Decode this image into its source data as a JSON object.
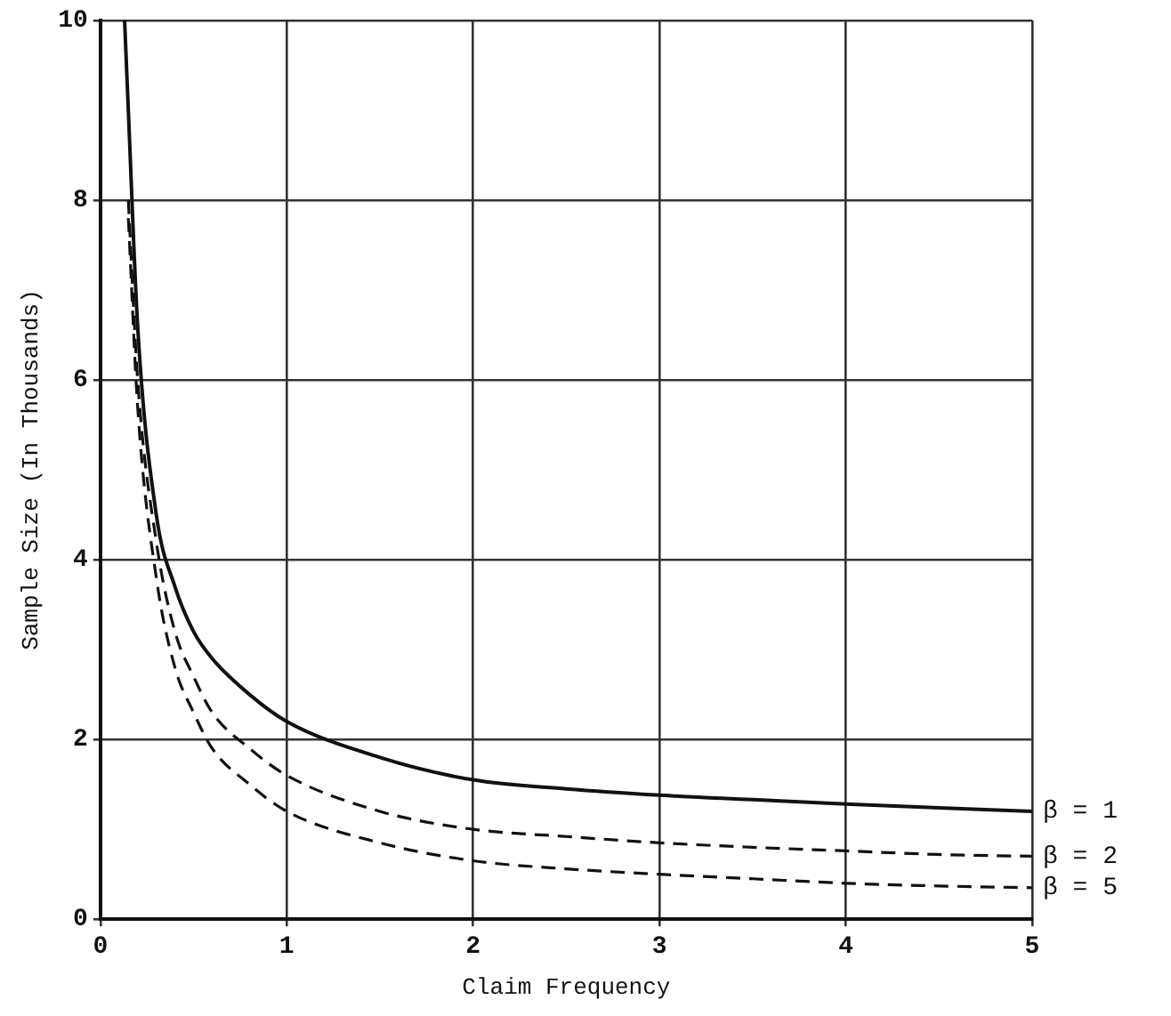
{
  "chart_data": {
    "type": "line",
    "xlabel": "Claim Frequency",
    "ylabel": "Sample Size (In Thousands)",
    "xlim": [
      0,
      5
    ],
    "xticks": [
      0,
      1,
      2,
      3,
      4,
      5
    ],
    "ylim": [
      0,
      10
    ],
    "yticks": [
      0,
      2,
      4,
      6,
      8,
      10
    ],
    "grid": true,
    "legend": false,
    "marker": "none",
    "series": [
      {
        "name": "β = 1",
        "color": "#111111",
        "line_style": "solid",
        "x": [
          0.13,
          0.15,
          0.2,
          0.3,
          0.4,
          0.5,
          0.6,
          0.8,
          1,
          1.5,
          2,
          2.5,
          3,
          3.5,
          4,
          4.5,
          5
        ],
        "values": [
          10,
          9,
          6.6,
          4.5,
          3.7,
          3.2,
          2.9,
          2.5,
          2.2,
          1.8,
          1.55,
          1.45,
          1.38,
          1.33,
          1.28,
          1.24,
          1.2
        ]
      },
      {
        "name": "β = 2",
        "color": "#111111",
        "line_style": "dashed",
        "x": [
          0.15,
          0.2,
          0.3,
          0.4,
          0.5,
          0.6,
          0.8,
          1,
          1.5,
          2,
          2.5,
          3,
          3.5,
          4,
          4.5,
          5
        ],
        "values": [
          8,
          6,
          4.2,
          3.2,
          2.7,
          2.3,
          1.9,
          1.6,
          1.2,
          1,
          0.92,
          0.85,
          0.8,
          0.76,
          0.72,
          0.7
        ]
      },
      {
        "name": "β = 5",
        "color": "#111111",
        "line_style": "dashed",
        "x": [
          0.15,
          0.2,
          0.3,
          0.4,
          0.5,
          0.6,
          0.8,
          1,
          1.5,
          2,
          2.5,
          3,
          3.5,
          4,
          4.5,
          5
        ],
        "values": [
          7.8,
          5.7,
          3.8,
          2.8,
          2.3,
          1.9,
          1.5,
          1.2,
          0.85,
          0.65,
          0.56,
          0.5,
          0.45,
          0.4,
          0.37,
          0.35
        ]
      }
    ]
  }
}
